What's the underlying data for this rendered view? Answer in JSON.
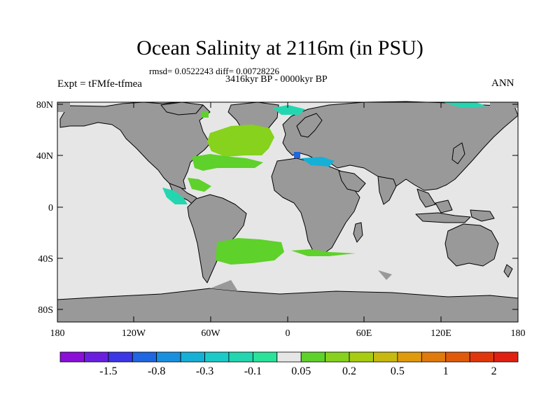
{
  "title": "Ocean Salinity at 2116m (in PSU)",
  "stats": "rmsd= 0.0522243 diff= 0.00728226",
  "period": "3416kyr BP - 0000kyr BP",
  "experiment": "Expt = tFMfe-tfmea",
  "season": "ANN",
  "map": {
    "lat_ticks": [
      "80N",
      "40N",
      "0",
      "40S",
      "80S"
    ],
    "lon_ticks": [
      "180",
      "120W",
      "60W",
      "0",
      "60E",
      "120E",
      "180"
    ],
    "colors": {
      "land": "#999999",
      "ocean": "#e6e6e6",
      "coast": "#000000"
    }
  },
  "colorbar": {
    "colors": [
      "#8b0fd8",
      "#6a1fe0",
      "#3b36e6",
      "#1f66e0",
      "#1990dd",
      "#16b0d6",
      "#1ccac8",
      "#24d6b0",
      "#2ae29a",
      "#e6e6e6",
      "#5ed12b",
      "#86d21c",
      "#a8cc12",
      "#c7b90f",
      "#e09a0e",
      "#e07a0c",
      "#e05a0c",
      "#e0380c",
      "#e02010"
    ],
    "labels": [
      "-1.5",
      "-0.8",
      "-0.3",
      "-0.1",
      "0.05",
      "0.2",
      "0.5",
      "1",
      "2"
    ]
  }
}
